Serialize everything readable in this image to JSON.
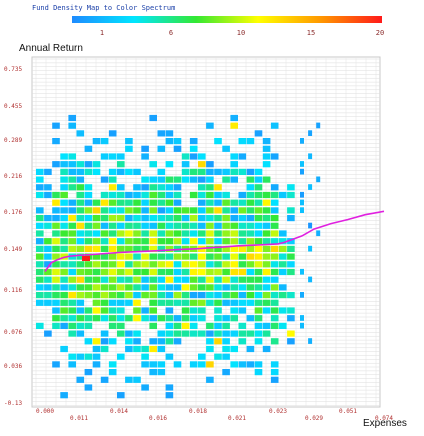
{
  "chart_data": {
    "type": "heatmap",
    "legend": {
      "title": "Fund Density Map to Color Spectrum",
      "ticks": [
        "1",
        "6",
        "10",
        "15",
        "20"
      ],
      "min": 1,
      "max": 20,
      "colors": [
        "#1e8bff",
        "#00e5ff",
        "#33e833",
        "#ffff00",
        "#ff9900",
        "#ff1a1a"
      ]
    },
    "ylabel": "Annual Return",
    "xlabel": "Expenses",
    "yticks": [
      "0.735",
      "0.455",
      "0.289",
      "0.216",
      "0.176",
      "0.149",
      "0.116",
      "0.076",
      "0.036",
      "-0.13"
    ],
    "xticks": [
      "0.000",
      "0.011",
      "0.014",
      "0.016",
      "0.018",
      "0.021",
      "0.023",
      "0.029",
      "0.051",
      "0.074"
    ],
    "grid": true,
    "line": {
      "color": "#e020e0",
      "points": [
        [
          0.0,
          0.1325
        ],
        [
          0.002,
          0.1395
        ],
        [
          0.004,
          0.142
        ],
        [
          0.006,
          0.1438
        ],
        [
          0.008,
          0.1448
        ],
        [
          0.011,
          0.1455
        ],
        [
          0.012,
          0.1462
        ],
        [
          0.013,
          0.147
        ],
        [
          0.014,
          0.1478
        ],
        [
          0.015,
          0.1485
        ],
        [
          0.016,
          0.1492
        ],
        [
          0.017,
          0.15
        ],
        [
          0.018,
          0.1507
        ],
        [
          0.019,
          0.1514
        ],
        [
          0.02,
          0.152
        ],
        [
          0.021,
          0.1527
        ],
        [
          0.022,
          0.1534
        ],
        [
          0.023,
          0.1542
        ],
        [
          0.024,
          0.1552
        ],
        [
          0.027,
          0.16
        ],
        [
          0.029,
          0.165
        ],
        [
          0.04,
          0.169
        ],
        [
          0.051,
          0.172
        ],
        [
          0.062,
          0.1755
        ],
        [
          0.074,
          0.179
        ]
      ]
    }
  }
}
